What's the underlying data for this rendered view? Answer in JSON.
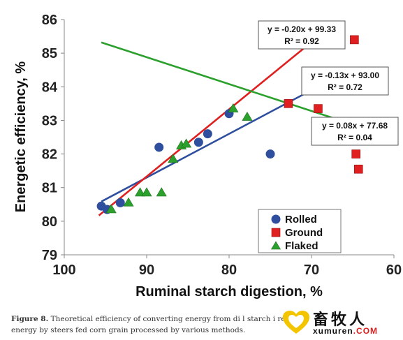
{
  "chart_data": {
    "type": "scatter",
    "xlabel": "Ruminal starch digestion, %",
    "ylabel": "Energetic efficiency, %",
    "xlim": [
      100,
      60
    ],
    "ylim": [
      79,
      86
    ],
    "x_reversed": true,
    "xticks": [
      100,
      90,
      80,
      70,
      60
    ],
    "yticks": [
      79,
      80,
      81,
      82,
      83,
      84,
      85,
      86
    ],
    "grid": false,
    "legend_position": "bottom-right",
    "series": [
      {
        "name": "Rolled",
        "marker": "circle",
        "color": "#2f4f9e",
        "points": [
          {
            "x": 95.5,
            "y": 80.45
          },
          {
            "x": 94.8,
            "y": 80.35
          },
          {
            "x": 93.2,
            "y": 80.55
          },
          {
            "x": 88.5,
            "y": 82.2
          },
          {
            "x": 83.7,
            "y": 82.35
          },
          {
            "x": 82.6,
            "y": 82.6
          },
          {
            "x": 80.0,
            "y": 83.2
          },
          {
            "x": 75.0,
            "y": 82.0
          }
        ],
        "fit": {
          "x_range": [
            95.5,
            71.0
          ],
          "equation": "y = -0.13x + 93.00",
          "r2": "R² = 0.72",
          "color": "#2f4f9e"
        }
      },
      {
        "name": "Ground",
        "marker": "square",
        "color": "#e02020",
        "points": [
          {
            "x": 72.8,
            "y": 83.5
          },
          {
            "x": 69.2,
            "y": 83.35
          },
          {
            "x": 64.8,
            "y": 85.4
          },
          {
            "x": 64.6,
            "y": 82.0
          },
          {
            "x": 64.3,
            "y": 81.55
          }
        ],
        "fit": {
          "x_range": [
            95.8,
            67.0
          ],
          "equation": "y = -0.20x + 99.33",
          "r2": "R² = 0.92",
          "color": "#e02020"
        }
      },
      {
        "name": "Flaked",
        "marker": "triangle",
        "color": "#2ca02c",
        "points": [
          {
            "x": 94.3,
            "y": 80.35
          },
          {
            "x": 92.2,
            "y": 80.55
          },
          {
            "x": 90.8,
            "y": 80.85
          },
          {
            "x": 90.0,
            "y": 80.85
          },
          {
            "x": 88.2,
            "y": 80.85
          },
          {
            "x": 86.8,
            "y": 81.85
          },
          {
            "x": 85.8,
            "y": 82.25
          },
          {
            "x": 85.2,
            "y": 82.3
          },
          {
            "x": 79.5,
            "y": 83.35
          },
          {
            "x": 77.8,
            "y": 83.1
          }
        ],
        "fit": {
          "x_range": [
            95.5,
            67.0
          ],
          "equation": "y = 0.08x + 77.68",
          "r2": "R² = 0.04",
          "color": "#2ca02c"
        }
      }
    ]
  },
  "caption": {
    "label": "Figure 8.",
    "text": "Theoretical efficiency of converting energy from di      l starch i     retained energy by steers fed corn grain processed by various methods."
  },
  "watermark": {
    "chinese": "畜牧人",
    "url_main": "xumuren",
    "url_suffix": ".COM"
  }
}
